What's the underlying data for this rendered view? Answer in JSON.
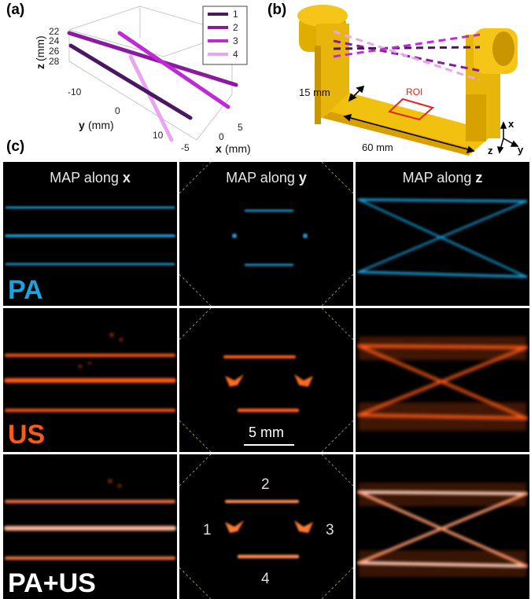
{
  "panels": {
    "a": "(a)",
    "b": "(b)",
    "c": "(c)"
  },
  "plot3d": {
    "z_axis_label": "z",
    "z_axis_unit": "(mm)",
    "z_ticks": [
      "22",
      "24",
      "26",
      "28"
    ],
    "y_axis_label": "y",
    "y_axis_unit": "(mm)",
    "y_ticks": [
      "-10",
      "0",
      "10"
    ],
    "x_axis_label": "x",
    "x_axis_unit": "(mm)",
    "x_ticks": [
      "5",
      "0",
      "-5"
    ],
    "legend": [
      "1",
      "2",
      "3",
      "4"
    ],
    "colors": [
      "#4a1761",
      "#8a1a9e",
      "#c02ad6",
      "#e7a6ee"
    ]
  },
  "phantom": {
    "dim_thickness": "15 mm",
    "dim_length": "60 mm",
    "roi_label": "ROI",
    "axis_x": "x",
    "axis_y": "y",
    "axis_z": "z",
    "body_color": "#f2c10f",
    "roi_color": "#e2231a"
  },
  "grid": {
    "headers": [
      {
        "prefix": "MAP along ",
        "axis": "x"
      },
      {
        "prefix": "MAP along ",
        "axis": "y"
      },
      {
        "prefix": "MAP along ",
        "axis": "z"
      }
    ],
    "rows": [
      {
        "label": "PA",
        "color": "#1ba3dd"
      },
      {
        "label": "US",
        "color": "#ff5a14"
      },
      {
        "label": "PA+US",
        "color": "#ffffff"
      }
    ],
    "scale_bar": "5 mm",
    "wire_labels": [
      "1",
      "2",
      "3",
      "4"
    ]
  }
}
